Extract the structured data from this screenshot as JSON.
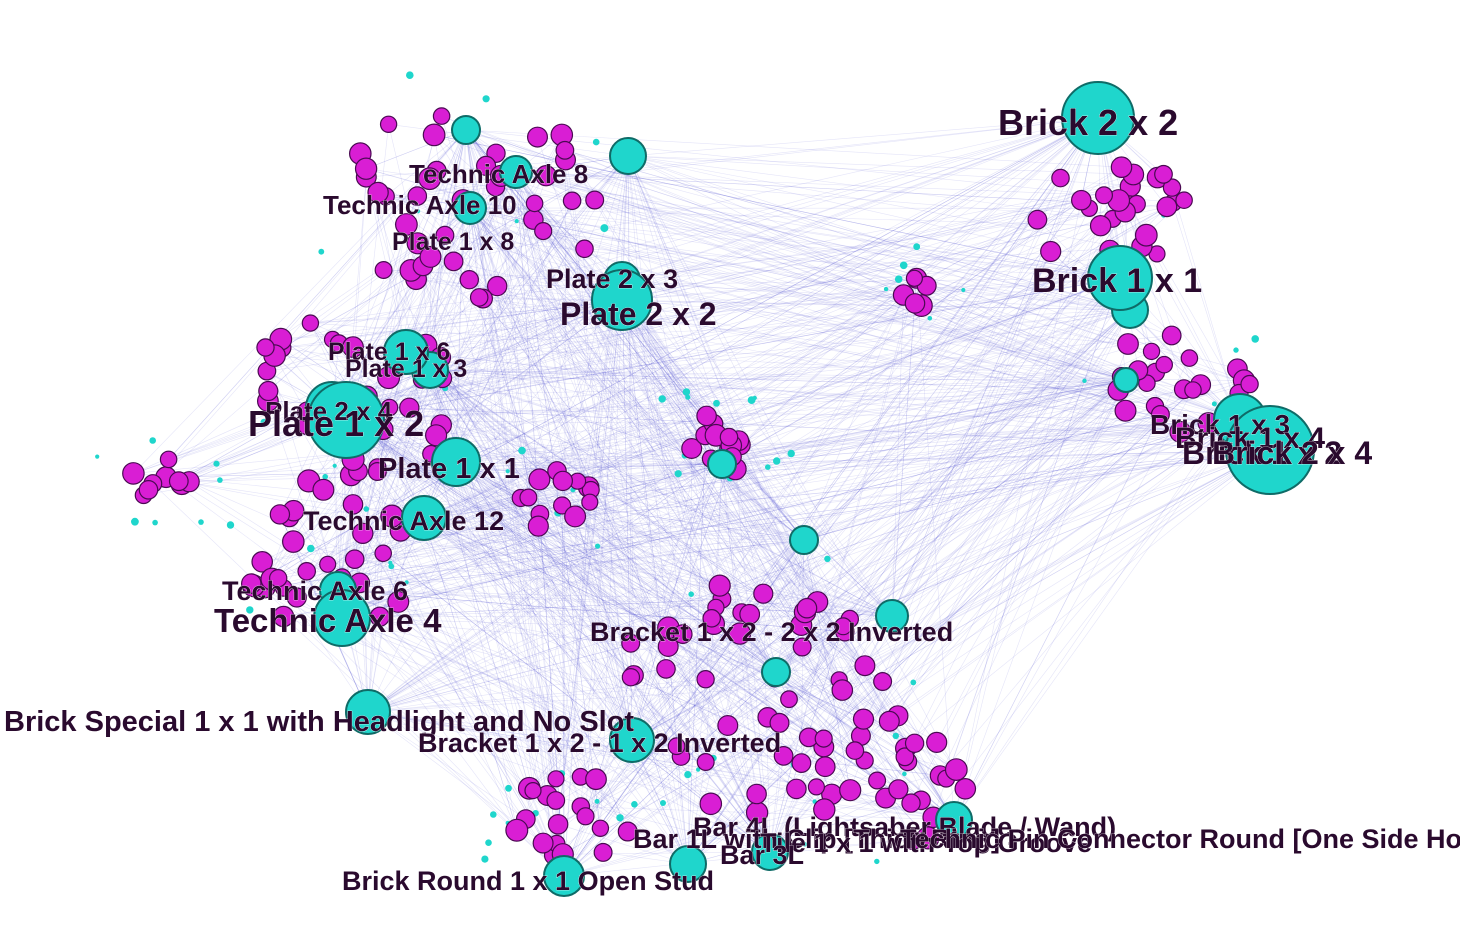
{
  "colors": {
    "part_node": "#1fd6cc",
    "set_node": "#d91ed4",
    "edge": "#5a55d6",
    "label": "#2a0a2e"
  },
  "labels": [
    "Brick 2 x 2",
    "Brick 1 x 1",
    "Technic Axle 8",
    "Technic Axle 10",
    "Plate 1 x 8",
    "Plate 2 x 3",
    "Plate 2 x 2",
    "Plate 1 x 6",
    "Plate 1 x 3",
    "Plate 2 x 4",
    "Plate 1 x 2",
    "Plate 1 x 1",
    "Technic Axle 12",
    "Technic Axle 6",
    "Technic Axle 4",
    "Brick 1 x 3",
    "Brick 1 x 4",
    "Brick 1 x 2",
    "Brick 2 x 4",
    "Bracket 1 x 2 - 2 x 2 Inverted",
    "Brick Special 1 x 1 with Headlight and No Slot",
    "Bracket 1 x 2 - 1 x 2 Inverted",
    "Bar 4L (Lightsaber Blade / Wand)",
    "Bar 1L with Clip [Thick Ring]",
    "Tile 1 x 1 with Top Groove",
    "Technic Pin Connector Round [One Side Hole]",
    "Bar 3L",
    "Brick Round 1 x 1 Open Stud"
  ]
}
